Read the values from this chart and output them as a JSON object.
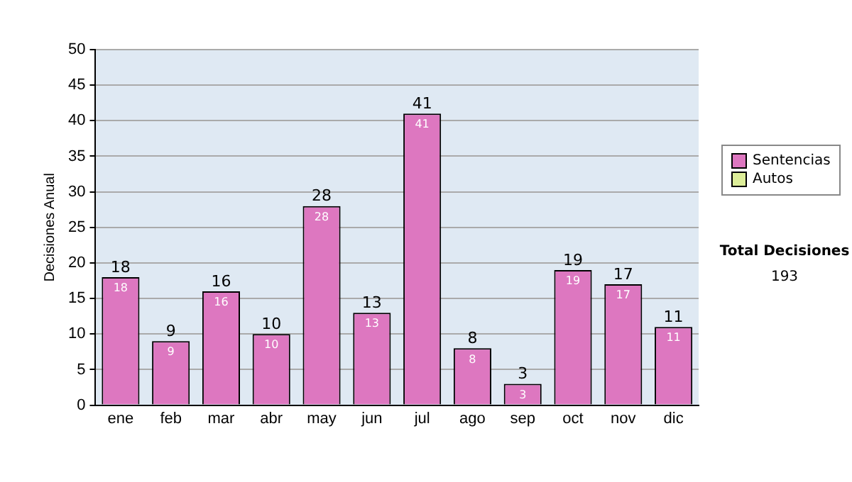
{
  "chart_data": {
    "type": "bar",
    "stacked": true,
    "ylabel": "Decisiones Anual",
    "categories": [
      "ene",
      "feb",
      "mar",
      "abr",
      "may",
      "jun",
      "jul",
      "ago",
      "sep",
      "oct",
      "nov",
      "dic"
    ],
    "series": [
      {
        "name": "Sentencias",
        "color": "#dd77c0",
        "values": [
          18,
          9,
          16,
          10,
          28,
          13,
          41,
          8,
          3,
          19,
          17,
          11
        ],
        "value_labels": [
          "18",
          "9",
          "16",
          "10",
          "28",
          "13",
          "41",
          "8",
          "3",
          "19",
          "17",
          "11"
        ]
      },
      {
        "name": "Autos",
        "color": "#ddee99",
        "values": [
          0,
          0,
          0,
          0,
          0,
          0,
          0,
          0,
          0,
          0,
          0,
          0
        ],
        "value_labels": [
          null,
          null,
          null,
          null,
          null,
          null,
          null,
          null,
          null,
          null,
          null,
          null
        ]
      }
    ],
    "totals": [
      "18",
      "9",
      "16",
      "10",
      "28",
      "13",
      "41",
      "8",
      "3",
      "19",
      "17",
      "11"
    ],
    "ylim": [
      0,
      50
    ],
    "yticks": [
      0,
      5,
      10,
      15,
      20,
      25,
      30,
      35,
      40,
      45,
      50
    ],
    "grid": "y",
    "legend": "right",
    "annotations": [
      "Total Decisiones",
      "193"
    ]
  }
}
